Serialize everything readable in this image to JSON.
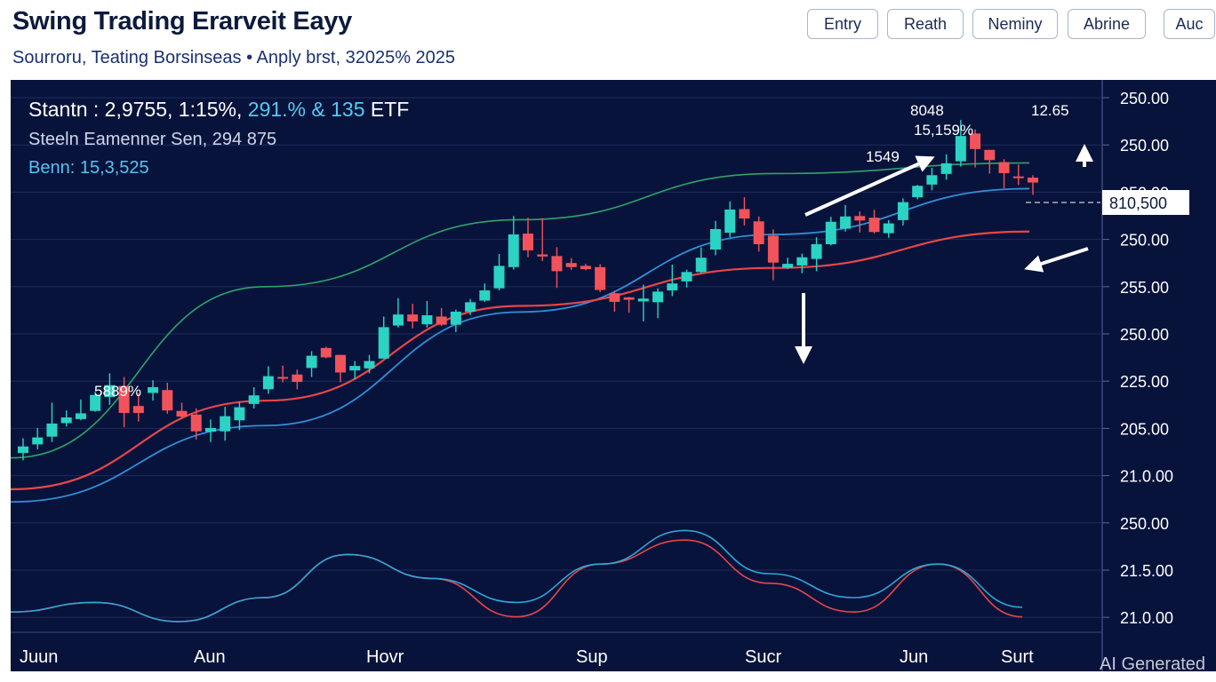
{
  "header": {
    "title": "Swing Trading Erarveit Eayy",
    "subtitle": "Sourroru, Teating Borsinseas • Anply brst, 32025% 2025"
  },
  "toolbar": {
    "buttons": [
      {
        "label": "Entry",
        "name": "entry-button"
      },
      {
        "label": "Reath",
        "name": "reath-button"
      },
      {
        "label": "Neminy",
        "name": "neminy-button"
      },
      {
        "label": "Abrine",
        "name": "abrine-button"
      },
      {
        "label": "Auc",
        "name": "auc-button"
      }
    ]
  },
  "info": {
    "line1_prefix": "Stantn : 2,9755, 1:15%,",
    "line1_highlight": "291.% & 135",
    "line1_suffix": "ETF",
    "line2": "Steeln Eamenner Sen, 294 875",
    "line3": "Benn: 15,3,525"
  },
  "watermark": "AI Generated",
  "colors": {
    "background": "#08133b",
    "bull": "#2ad3c3",
    "bear": "#f2535a",
    "ma_fast": "#2fa36a",
    "ma_mid": "#2f8fd9",
    "ma_slow": "#e8454a",
    "grid": "#1e2c5c",
    "osc_blue": "#2fa6d6",
    "osc_red": "#e8454a"
  },
  "chart_data": {
    "type": "candlestick",
    "x_tick_labels": [
      "Juun",
      "Aun",
      "Hovr",
      "Sup",
      "Sucr",
      "Jun",
      "Surt"
    ],
    "y_tick_labels": [
      "250.00",
      "250.00",
      "250.00",
      "250.00",
      "255.00",
      "250.00",
      "225.00",
      "205.00",
      "21.0.00",
      "250.00",
      "21.5.00",
      "21.0.00"
    ],
    "y_range": [
      0,
      100
    ],
    "price_label": "810,500",
    "annotations": [
      "5889%",
      "1549",
      "8048",
      "15,159%",
      "12.65"
    ],
    "candles": [
      {
        "o": 25.2,
        "c": 26.8,
        "h": 28.8,
        "l": 23.4
      },
      {
        "o": 27.3,
        "c": 29.0,
        "h": 31.3,
        "l": 26.1
      },
      {
        "o": 29.2,
        "c": 32.4,
        "h": 37.5,
        "l": 27.9
      },
      {
        "o": 32.5,
        "c": 33.9,
        "h": 35.6,
        "l": 31.7
      },
      {
        "o": 33.5,
        "c": 34.9,
        "h": 38.3,
        "l": 33.2
      },
      {
        "o": 35.5,
        "c": 39.4,
        "h": 40.2,
        "l": 35.3
      },
      {
        "o": 38.9,
        "c": 41.8,
        "h": 44.7,
        "l": 37.0
      },
      {
        "o": 41.6,
        "c": 35.0,
        "h": 43.8,
        "l": 31.5
      },
      {
        "o": 36.7,
        "c": 35.0,
        "h": 39.8,
        "l": 32.9
      },
      {
        "o": 39.9,
        "c": 41.3,
        "h": 43.0,
        "l": 38.0
      },
      {
        "o": 40.6,
        "c": 35.6,
        "h": 42.4,
        "l": 34.8
      },
      {
        "o": 35.5,
        "c": 34.1,
        "h": 37.5,
        "l": 33.5
      },
      {
        "o": 34.6,
        "c": 30.5,
        "h": 36.1,
        "l": 28.5
      },
      {
        "o": 30.4,
        "c": 31.3,
        "h": 33.4,
        "l": 27.9
      },
      {
        "o": 30.5,
        "c": 34.2,
        "h": 36.5,
        "l": 28.2
      },
      {
        "o": 33.2,
        "c": 36.4,
        "h": 37.7,
        "l": 30.8
      },
      {
        "o": 37.2,
        "c": 39.3,
        "h": 41.3,
        "l": 36.1
      },
      {
        "o": 40.8,
        "c": 44.0,
        "h": 46.4,
        "l": 39.7
      },
      {
        "o": 43.8,
        "c": 43.6,
        "h": 46.6,
        "l": 42.5
      },
      {
        "o": 44.4,
        "c": 42.6,
        "h": 45.6,
        "l": 40.8
      },
      {
        "o": 46.0,
        "c": 49.0,
        "h": 50.1,
        "l": 43.8
      },
      {
        "o": 50.9,
        "c": 48.6,
        "h": 51.2,
        "l": 48.4
      },
      {
        "o": 49.2,
        "c": 44.9,
        "h": 49.2,
        "l": 42.5
      },
      {
        "o": 45.4,
        "c": 46.5,
        "h": 47.7,
        "l": 43.2
      },
      {
        "o": 45.9,
        "c": 47.7,
        "h": 49.2,
        "l": 44.7
      },
      {
        "o": 48.3,
        "c": 56.0,
        "h": 58.6,
        "l": 48.3
      },
      {
        "o": 56.4,
        "c": 59.1,
        "h": 63.1,
        "l": 55.9
      },
      {
        "o": 59.1,
        "c": 57.4,
        "h": 61.7,
        "l": 55.7
      },
      {
        "o": 56.7,
        "c": 58.9,
        "h": 62.4,
        "l": 55.9
      },
      {
        "o": 58.6,
        "c": 56.6,
        "h": 60.7,
        "l": 56.3
      },
      {
        "o": 56.6,
        "c": 59.8,
        "h": 60.3,
        "l": 54.8
      },
      {
        "o": 59.8,
        "c": 62.1,
        "h": 62.9,
        "l": 59.0
      },
      {
        "o": 62.5,
        "c": 65.0,
        "h": 66.7,
        "l": 62.2
      },
      {
        "o": 65.5,
        "c": 71.0,
        "h": 73.9,
        "l": 65.0
      },
      {
        "o": 70.7,
        "c": 78.7,
        "h": 83.2,
        "l": 70.1
      },
      {
        "o": 78.9,
        "c": 74.8,
        "h": 82.8,
        "l": 73.1
      },
      {
        "o": 73.8,
        "c": 73.3,
        "h": 82.7,
        "l": 72.2
      },
      {
        "o": 73.4,
        "c": 69.7,
        "h": 75.6,
        "l": 65.6
      },
      {
        "o": 71.7,
        "c": 70.7,
        "h": 72.9,
        "l": 70.0
      },
      {
        "o": 71.0,
        "c": 70.2,
        "h": 71.5,
        "l": 69.9
      },
      {
        "o": 70.7,
        "c": 65.1,
        "h": 71.4,
        "l": 64.6
      },
      {
        "o": 64.3,
        "c": 62.2,
        "h": 64.9,
        "l": 59.8
      },
      {
        "o": 63.3,
        "c": 62.7,
        "h": 63.4,
        "l": 59.5
      },
      {
        "o": 62.3,
        "c": 63.0,
        "h": 66.4,
        "l": 57.4
      },
      {
        "o": 62.1,
        "c": 64.7,
        "h": 65.5,
        "l": 58.2
      },
      {
        "o": 65.0,
        "c": 66.7,
        "h": 71.3,
        "l": 63.6
      },
      {
        "o": 67.2,
        "c": 69.5,
        "h": 70.1,
        "l": 65.7
      },
      {
        "o": 69.5,
        "c": 73.0,
        "h": 75.5,
        "l": 69.3
      },
      {
        "o": 75.0,
        "c": 80.0,
        "h": 82.0,
        "l": 73.6
      },
      {
        "o": 79.1,
        "c": 84.8,
        "h": 86.8,
        "l": 78.0
      },
      {
        "o": 84.9,
        "c": 82.6,
        "h": 87.8,
        "l": 80.9
      },
      {
        "o": 81.9,
        "c": 76.3,
        "h": 83.1,
        "l": 74.5
      },
      {
        "o": 78.4,
        "c": 71.8,
        "h": 79.9,
        "l": 67.5
      },
      {
        "o": 70.5,
        "c": 71.5,
        "h": 73.0,
        "l": 70.2
      },
      {
        "o": 71.1,
        "c": 73.1,
        "h": 74.0,
        "l": 69.2
      },
      {
        "o": 72.7,
        "c": 76.3,
        "h": 78.0,
        "l": 69.7
      },
      {
        "o": 76.3,
        "c": 81.8,
        "h": 83.0,
        "l": 76.0
      },
      {
        "o": 80.1,
        "c": 83.1,
        "h": 85.9,
        "l": 79.4
      },
      {
        "o": 83.2,
        "c": 82.1,
        "h": 84.3,
        "l": 79.2
      },
      {
        "o": 82.8,
        "c": 79.3,
        "h": 84.7,
        "l": 78.9
      },
      {
        "o": 79.0,
        "c": 81.4,
        "h": 82.2,
        "l": 77.9
      },
      {
        "o": 82.2,
        "c": 86.6,
        "h": 87.5,
        "l": 80.9
      },
      {
        "o": 87.8,
        "c": 90.6,
        "h": 90.8,
        "l": 87.3
      },
      {
        "o": 90.9,
        "c": 93.2,
        "h": 95.0,
        "l": 89.5
      },
      {
        "o": 93.5,
        "c": 96.1,
        "h": 98.3,
        "l": 92.1
      },
      {
        "o": 96.6,
        "c": 102.8,
        "h": 106.7,
        "l": 95.3
      },
      {
        "o": 103.4,
        "c": 99.6,
        "h": 104.4,
        "l": 95.1
      },
      {
        "o": 99.4,
        "c": 96.9,
        "h": 99.4,
        "l": 93.6
      },
      {
        "o": 96.4,
        "c": 93.7,
        "h": 97.1,
        "l": 90.0
      },
      {
        "o": 92.9,
        "c": 92.5,
        "h": 95.8,
        "l": 90.8
      },
      {
        "o": 92.6,
        "c": 91.4,
        "h": 93.2,
        "l": 88.4
      }
    ],
    "moving_averages": [
      {
        "color": "ma_fast",
        "values": [
          24.0,
          65.9,
          82.3,
          93.6,
          96.2
        ]
      },
      {
        "color": "ma_mid",
        "values": [
          13.2,
          31.9,
          59.7,
          78.7,
          89.9
        ]
      },
      {
        "color": "ma_slow",
        "values": [
          16.3,
          38.0,
          61.2,
          70.5,
          79.4
        ]
      }
    ],
    "oscillator": {
      "blue": [
        2,
        4,
        0,
        5,
        14,
        9,
        4,
        12,
        19,
        10,
        5,
        12,
        3
      ],
      "red": [
        2,
        4,
        0,
        5,
        14,
        9,
        1,
        12,
        17,
        8,
        2,
        12,
        1
      ]
    }
  }
}
